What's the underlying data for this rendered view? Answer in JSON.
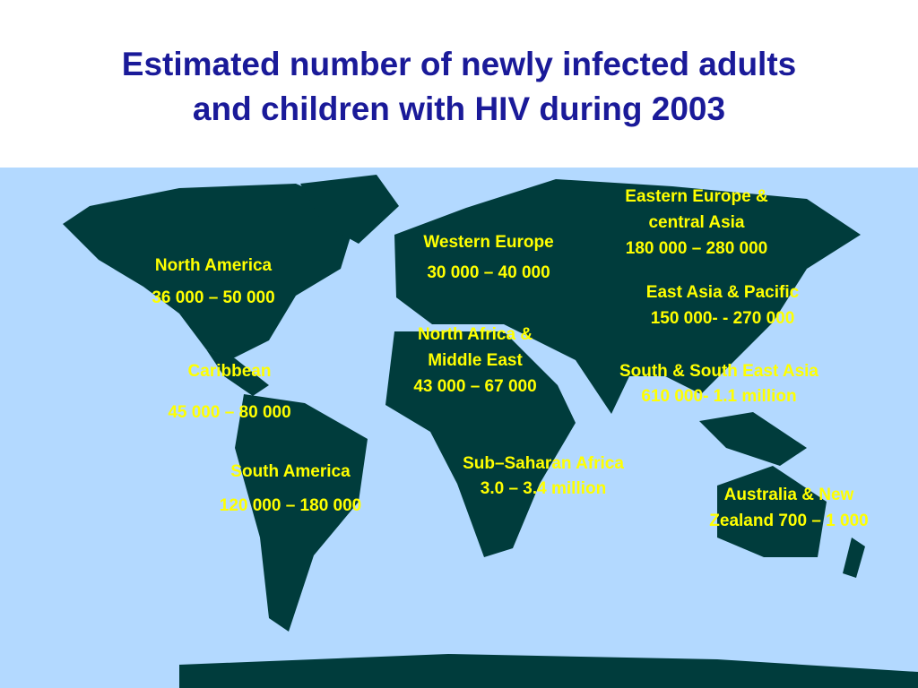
{
  "title": [
    "Estimated number of newly infected adults",
    "and children with HIV during 2003"
  ],
  "regions": [
    {
      "lines": [
        "North America",
        "36 000 – 50 000"
      ]
    },
    {
      "lines": [
        "Caribbean",
        "45 000 – 80 000"
      ]
    },
    {
      "lines": [
        "South America",
        "120 000 – 180 000"
      ]
    },
    {
      "lines": [
        "Western Europe",
        "30 000 – 40 000"
      ]
    },
    {
      "lines": [
        "North Africa &",
        "Middle East",
        "43 000 – 67 000"
      ]
    },
    {
      "lines": [
        "Sub–Saharan Africa",
        "3.0 – 3.4  million"
      ]
    },
    {
      "lines": [
        "Eastern Europe  &",
        "central Asia",
        "180 000 – 280 000"
      ]
    },
    {
      "lines": [
        "East Asia & Pacific",
        "150 000- - 270 000"
      ]
    },
    {
      "lines": [
        "South & South East Asia",
        "610 000- 1.1 million"
      ]
    },
    {
      "lines": [
        "Australia & New",
        "Zealand 700 – 1 000"
      ]
    }
  ]
}
